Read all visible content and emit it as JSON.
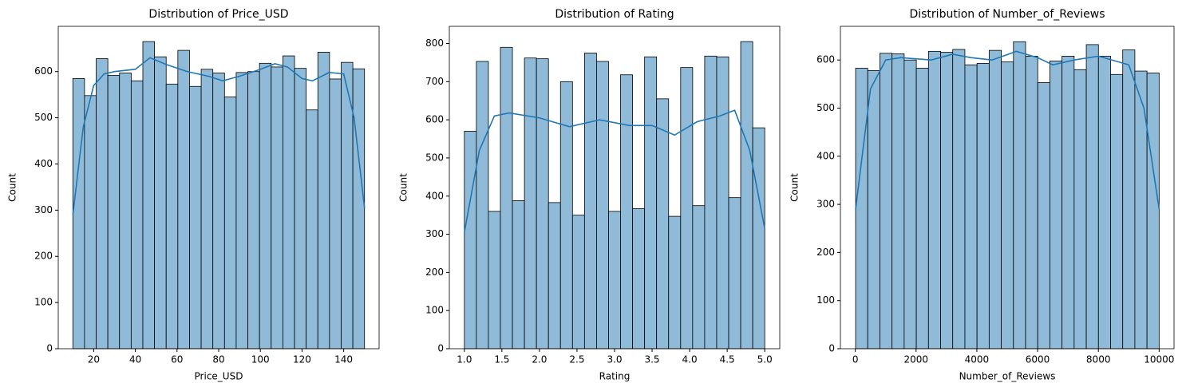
{
  "chart_data": [
    {
      "type": "histogram",
      "title": "Distribution of Price_USD",
      "xlabel": "Price_USD",
      "ylabel": "Count",
      "bins": [
        10,
        15.6,
        21.2,
        26.8,
        32.4,
        38,
        43.6,
        49.2,
        54.8,
        60.4,
        66,
        71.6,
        77.2,
        82.8,
        88.4,
        94,
        99.6,
        105.2,
        110.8,
        116.4,
        122,
        127.6,
        133.2,
        138.8,
        144.4,
        150
      ],
      "counts": [
        585,
        548,
        628,
        592,
        597,
        580,
        665,
        632,
        573,
        646,
        568,
        605,
        597,
        545,
        598,
        600,
        618,
        610,
        634,
        607,
        517,
        642,
        584,
        620,
        606
      ],
      "kde": {
        "x": [
          10,
          15,
          20,
          25,
          30,
          40,
          47,
          55,
          65,
          75,
          82,
          90,
          100,
          107,
          113,
          120,
          125,
          133,
          140,
          145,
          150
        ],
        "y": [
          290,
          480,
          570,
          595,
          600,
          605,
          630,
          615,
          600,
          590,
          580,
          590,
          605,
          617,
          610,
          585,
          580,
          598,
          595,
          500,
          305
        ]
      },
      "color": "#8fbbd9",
      "kde_color": "#1f77b4",
      "xlim": [
        3,
        157
      ],
      "xticks": [
        20,
        40,
        60,
        80,
        100,
        120,
        140
      ],
      "ylim": [
        0,
        698
      ],
      "yticks": [
        0,
        100,
        200,
        300,
        400,
        500,
        600
      ]
    },
    {
      "type": "histogram",
      "title": "Distribution of Rating",
      "xlabel": "Rating",
      "ylabel": "Count",
      "bins": [
        1,
        1.16,
        1.32,
        1.48,
        1.64,
        1.8,
        1.96,
        2.12,
        2.28,
        2.44,
        2.6,
        2.76,
        2.92,
        3.08,
        3.24,
        3.4,
        3.56,
        3.72,
        3.88,
        4.04,
        4.2,
        4.36,
        4.52,
        4.68,
        4.84,
        5
      ],
      "counts": [
        570,
        753,
        360,
        790,
        388,
        762,
        760,
        383,
        700,
        350,
        775,
        753,
        360,
        718,
        367,
        765,
        655,
        347,
        737,
        375,
        767,
        765,
        396,
        805,
        579
      ],
      "kde": {
        "x": [
          1,
          1.2,
          1.4,
          1.6,
          2,
          2.4,
          2.8,
          3.2,
          3.5,
          3.8,
          4.1,
          4.4,
          4.6,
          4.8,
          5
        ],
        "y": [
          305,
          520,
          610,
          618,
          605,
          582,
          600,
          585,
          585,
          560,
          595,
          610,
          625,
          520,
          315
        ]
      },
      "color": "#8fbbd9",
      "kde_color": "#1f77b4",
      "xlim": [
        0.8,
        5.2
      ],
      "xticks": [
        {
          "value": 1,
          "label": "1.0"
        },
        1.5,
        {
          "value": 2,
          "label": "2.0"
        },
        2.5,
        {
          "value": 3,
          "label": "3.0"
        },
        3.5,
        {
          "value": 4,
          "label": "4.0"
        },
        4.5,
        {
          "value": 5,
          "label": "5.0"
        }
      ],
      "ylim": [
        0,
        845
      ],
      "yticks": [
        0,
        100,
        200,
        300,
        400,
        500,
        600,
        700,
        800
      ]
    },
    {
      "type": "histogram",
      "title": "Distribution of Number_of_Reviews",
      "xlabel": "Number_of_Reviews",
      "ylabel": "Count",
      "bins": [
        10,
        409.6,
        809.2,
        1208.8,
        1608.4,
        2008,
        2407.6,
        2807.2,
        3206.8,
        3606.4,
        4006,
        4405.6,
        4805.2,
        5204.8,
        5604.4,
        6004,
        6403.6,
        6803.2,
        7202.8,
        7602.4,
        8002,
        8401.6,
        8801.2,
        9200.8,
        9600.4,
        10000
      ],
      "counts": [
        583,
        578,
        614,
        613,
        600,
        583,
        618,
        616,
        622,
        590,
        593,
        620,
        596,
        638,
        608,
        553,
        598,
        608,
        580,
        632,
        608,
        570,
        621,
        577,
        573
      ],
      "kde": {
        "x": [
          10,
          500,
          1000,
          1500,
          2500,
          3200,
          3800,
          4500,
          5300,
          6000,
          6500,
          7200,
          8000,
          9000,
          9500,
          10000
        ],
        "y": [
          290,
          540,
          600,
          605,
          600,
          612,
          605,
          600,
          618,
          605,
          590,
          600,
          608,
          590,
          500,
          290
        ]
      },
      "color": "#8fbbd9",
      "kde_color": "#1f77b4",
      "xlim": [
        -490,
        10490
      ],
      "xticks": [
        0,
        2000,
        4000,
        6000,
        8000,
        10000
      ],
      "ylim": [
        0,
        670
      ],
      "yticks": [
        0,
        100,
        200,
        300,
        400,
        500,
        600
      ]
    }
  ]
}
